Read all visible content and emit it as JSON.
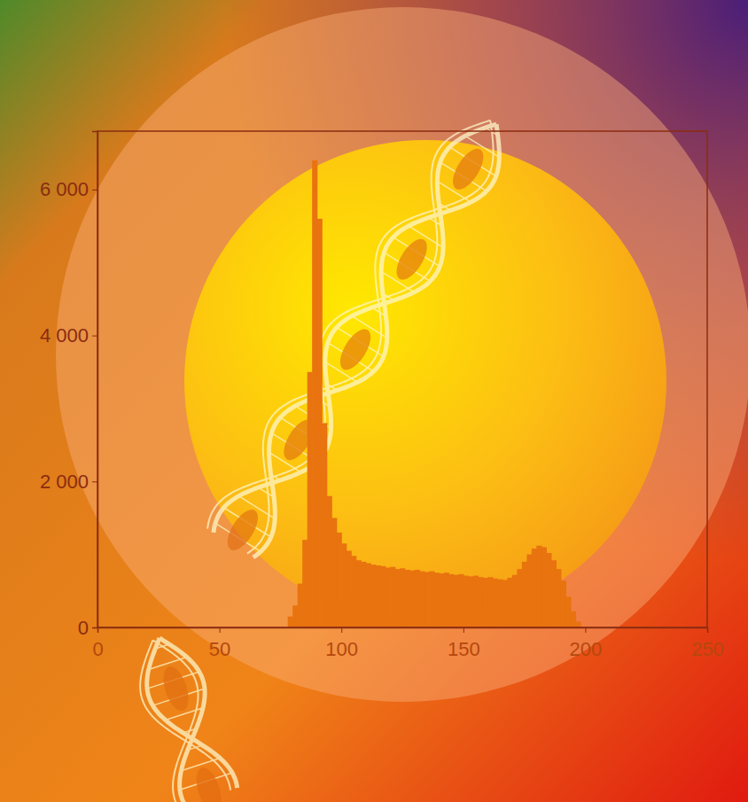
{
  "chart_data": {
    "type": "histogram",
    "bins": [
      78,
      80,
      82,
      84,
      86,
      88,
      90,
      92,
      94,
      96,
      98,
      100,
      102,
      104,
      106,
      108,
      110,
      112,
      114,
      116,
      118,
      120,
      122,
      124,
      126,
      128,
      130,
      132,
      134,
      136,
      138,
      140,
      142,
      144,
      146,
      148,
      150,
      152,
      154,
      156,
      158,
      160,
      162,
      164,
      166,
      168,
      170,
      172,
      174,
      176,
      178,
      180,
      182,
      184,
      186,
      188,
      190,
      192,
      194,
      196,
      198
    ],
    "values": [
      150,
      300,
      600,
      1200,
      3500,
      6400,
      5600,
      2800,
      1800,
      1500,
      1300,
      1150,
      1050,
      980,
      920,
      900,
      880,
      860,
      850,
      840,
      820,
      830,
      800,
      810,
      790,
      780,
      790,
      770,
      760,
      770,
      750,
      740,
      750,
      730,
      720,
      730,
      710,
      700,
      710,
      690,
      680,
      690,
      670,
      660,
      650,
      680,
      720,
      800,
      900,
      1000,
      1080,
      1120,
      1100,
      1020,
      920,
      800,
      640,
      420,
      220,
      80
    ],
    "color": "#e8730f",
    "xlim": [
      0,
      250
    ],
    "xticks": [
      0,
      50,
      100,
      150,
      200,
      250
    ],
    "ylim": [
      0,
      6800
    ],
    "yticks": [
      0,
      {
        "value": 2000,
        "label": "2 000"
      },
      {
        "value": 4000,
        "label": "4 000"
      },
      {
        "value": 6000,
        "label": "6 000"
      }
    ],
    "grid": false
  }
}
